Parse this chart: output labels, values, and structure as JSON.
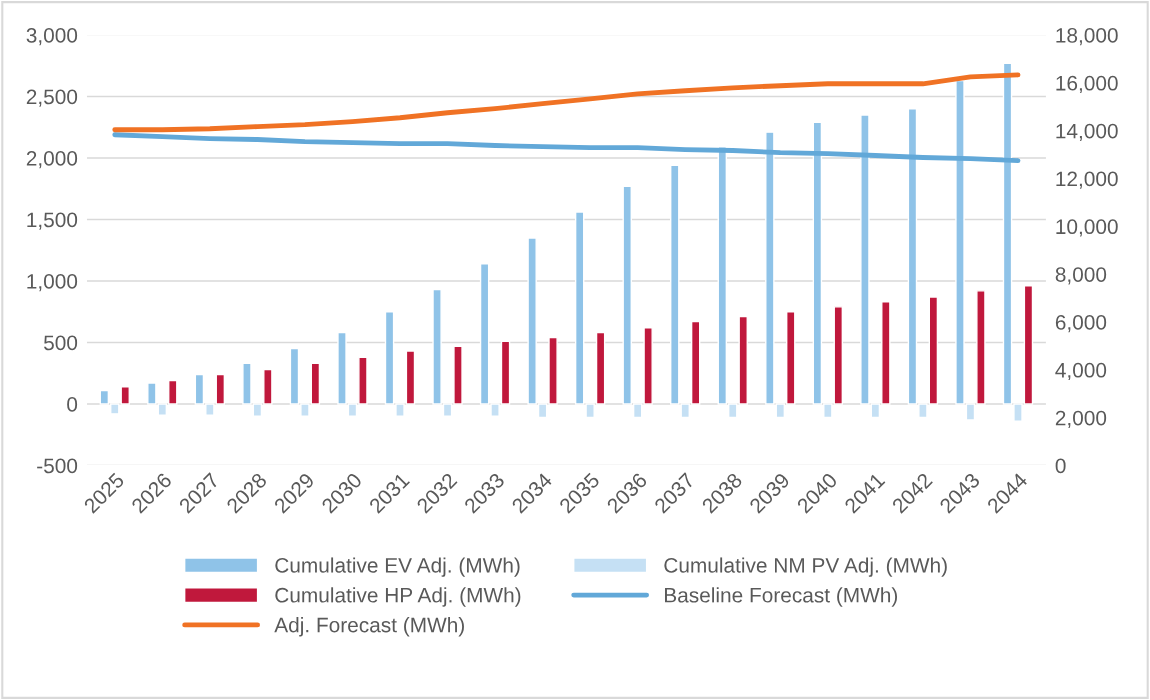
{
  "chart_data": {
    "type": "bar",
    "categories": [
      "2025",
      "2026",
      "2027",
      "2028",
      "2029",
      "2030",
      "2031",
      "2032",
      "2033",
      "2034",
      "2035",
      "2036",
      "2037",
      "2038",
      "2039",
      "2040",
      "2041",
      "2042",
      "2043",
      "2044"
    ],
    "series": [
      {
        "name": "Cumulative EV Adj. (MWh)",
        "color": "#8fc3e8",
        "values": [
          110,
          170,
          240,
          330,
          450,
          580,
          750,
          930,
          1140,
          1350,
          1560,
          1770,
          1940,
          2090,
          2210,
          2290,
          2350,
          2400,
          2630,
          2770
        ]
      },
      {
        "name": "Cumulative NM PV Adj. (MWh)",
        "color": "#c5e0f4",
        "values": [
          -80,
          -90,
          -90,
          -100,
          -100,
          -100,
          -100,
          -100,
          -100,
          -110,
          -110,
          -110,
          -110,
          -110,
          -110,
          -110,
          -110,
          -110,
          -130,
          -140
        ]
      },
      {
        "name": "Cumulative HP Adj. (MWh)",
        "color": "#c0183c",
        "values": [
          140,
          190,
          240,
          280,
          330,
          380,
          430,
          470,
          510,
          540,
          580,
          620,
          670,
          710,
          750,
          790,
          830,
          870,
          920,
          960
        ]
      },
      {
        "name": "Baseline Forecast (MWh)",
        "type": "line",
        "axis": "y2",
        "color": "#62a8d8",
        "values": [
          13830,
          13750,
          13670,
          13630,
          13540,
          13500,
          13460,
          13460,
          13380,
          13330,
          13290,
          13290,
          13210,
          13170,
          13080,
          13040,
          12960,
          12880,
          12830,
          12750
        ]
      },
      {
        "name": "Adj. Forecast (MWh)",
        "type": "line",
        "axis": "y2",
        "color": "#f07224",
        "values": [
          14040,
          14040,
          14080,
          14170,
          14250,
          14380,
          14540,
          14750,
          14920,
          15130,
          15330,
          15540,
          15670,
          15790,
          15880,
          15960,
          15960,
          15960,
          16250,
          16330
        ]
      }
    ],
    "ylim": [
      -500,
      3000
    ],
    "yticks": [
      {
        "value": -500,
        "label": "-500"
      },
      0,
      500,
      {
        "value": 1000,
        "label": "1,000"
      },
      {
        "value": 1500,
        "label": "1,500"
      },
      {
        "value": 2000,
        "label": "2,000"
      },
      {
        "value": 2500,
        "label": "2,500"
      },
      {
        "value": 3000,
        "label": "3,000"
      }
    ],
    "y2lim": [
      0,
      18000
    ],
    "y2ticks": [
      0,
      {
        "value": 2000,
        "label": "2,000"
      },
      {
        "value": 4000,
        "label": "4,000"
      },
      {
        "value": 6000,
        "label": "6,000"
      },
      {
        "value": 8000,
        "label": "8,000"
      },
      {
        "value": 10000,
        "label": "10,000"
      },
      {
        "value": 12000,
        "label": "12,000"
      },
      {
        "value": 14000,
        "label": "14,000"
      },
      {
        "value": 16000,
        "label": "16,000"
      },
      {
        "value": 18000,
        "label": "18,000"
      }
    ],
    "grid": "y",
    "legend": "bottom",
    "marker": "none",
    "line_style": "solid"
  }
}
